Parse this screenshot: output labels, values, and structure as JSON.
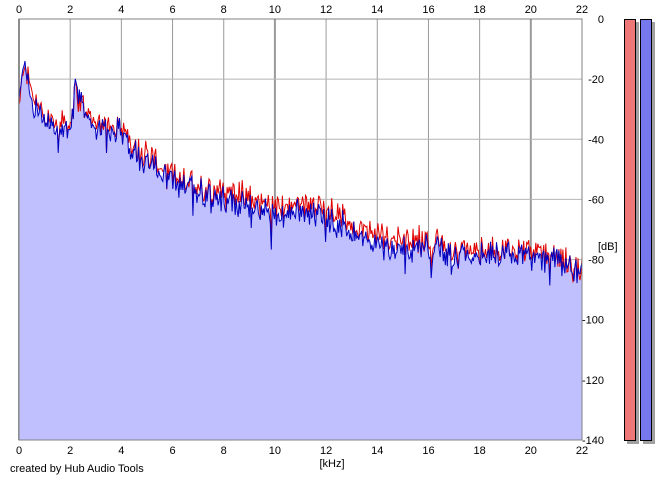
{
  "credit": "created by Hub Audio Tools",
  "meters": {
    "left_color": "#ee7777",
    "right_color": "#7777ee"
  },
  "chart_data": {
    "type": "area",
    "xlabel": "[kHz]",
    "ylabel": "[dB]",
    "xlim": [
      0,
      22
    ],
    "ylim": [
      -140,
      0
    ],
    "x_ticks": [
      "0",
      "2",
      "4",
      "6",
      "8",
      "10",
      "12",
      "14",
      "16",
      "18",
      "20",
      "22"
    ],
    "y_ticks": [
      "0",
      "-20",
      "-40",
      "-60",
      "-80",
      "-100",
      "-120",
      "-140"
    ],
    "grid": true,
    "fill_color": "#c0c0ff",
    "x": [
      0,
      0.2,
      0.5,
      1,
      1.5,
      2,
      2.2,
      3,
      3.5,
      4,
      4.5,
      5,
      6,
      7,
      8,
      9,
      10,
      11,
      12,
      13,
      14,
      15,
      16,
      17,
      18,
      19,
      20,
      21,
      22
    ],
    "series": [
      {
        "color": "#e00000",
        "values": [
          -30,
          -15,
          -25,
          -32,
          -35,
          -35,
          -25,
          -35,
          -34,
          -36,
          -42,
          -45,
          -52,
          -55,
          -57,
          -59,
          -63,
          -61,
          -62,
          -68,
          -72,
          -73,
          -74,
          -76,
          -77,
          -76,
          -78,
          -79,
          -83
        ]
      },
      {
        "color": "#0000c0",
        "values": [
          -30,
          -12,
          -28,
          -34,
          -37,
          -36,
          -24,
          -37,
          -36,
          -38,
          -44,
          -47,
          -54,
          -57,
          -60,
          -62,
          -66,
          -64,
          -65,
          -71,
          -76,
          -76,
          -76,
          -78,
          -79,
          -77,
          -79,
          -80,
          -84
        ]
      }
    ]
  }
}
